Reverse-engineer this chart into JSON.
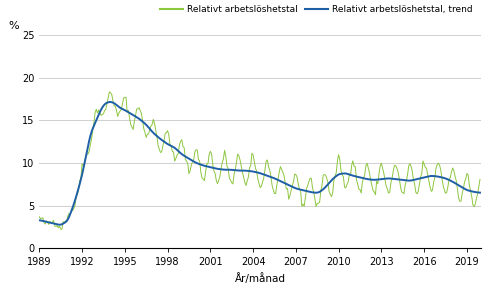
{
  "title": "",
  "ylabel": "%",
  "xlabel": "År/månad",
  "legend1": "Relativt arbetslöshetstal",
  "legend2": "Relativt arbetslöshetstal, trend",
  "line_color": "#1f5fa6",
  "green_color": "#8dc63f",
  "ylim": [
    0,
    25
  ],
  "yticks": [
    0,
    5,
    10,
    15,
    20,
    25
  ],
  "xticks": [
    1989,
    1992,
    1995,
    1998,
    2001,
    2004,
    2007,
    2010,
    2013,
    2016,
    2019
  ],
  "background_color": "#ffffff",
  "grid_color": "#c8c8c8"
}
